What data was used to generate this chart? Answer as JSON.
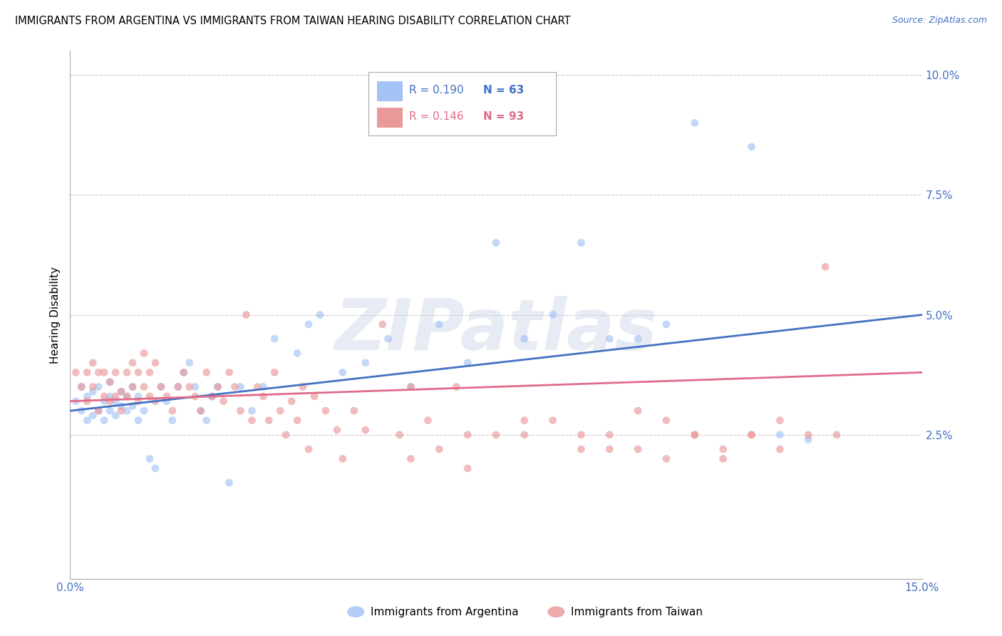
{
  "title": "IMMIGRANTS FROM ARGENTINA VS IMMIGRANTS FROM TAIWAN HEARING DISABILITY CORRELATION CHART",
  "source": "Source: ZipAtlas.com",
  "ylabel": "Hearing Disability",
  "legend_label_1": "Immigrants from Argentina",
  "legend_label_2": "Immigrants from Taiwan",
  "R1": "0.190",
  "N1": "63",
  "R2": "0.146",
  "N2": "93",
  "color1": "#a4c2f4",
  "color2": "#ea9999",
  "trendline1_color": "#4472c4",
  "trendline2_color": "#e06c8a",
  "xlim": [
    0.0,
    0.15
  ],
  "ylim": [
    -0.005,
    0.105
  ],
  "yticks_right": [
    0.025,
    0.05,
    0.075,
    0.1
  ],
  "ytick_labels_right": [
    "2.5%",
    "5.0%",
    "7.5%",
    "10.0%"
  ],
  "watermark": "ZIPatlas",
  "background_color": "#ffffff",
  "grid_color": "#cccccc",
  "scatter_alpha": 0.65,
  "scatter_size": 60,
  "argentina_x": [
    0.001,
    0.002,
    0.002,
    0.003,
    0.003,
    0.004,
    0.004,
    0.005,
    0.005,
    0.006,
    0.006,
    0.007,
    0.007,
    0.007,
    0.008,
    0.008,
    0.009,
    0.009,
    0.01,
    0.01,
    0.011,
    0.011,
    0.012,
    0.012,
    0.013,
    0.014,
    0.015,
    0.016,
    0.017,
    0.018,
    0.019,
    0.02,
    0.021,
    0.022,
    0.023,
    0.024,
    0.025,
    0.026,
    0.028,
    0.03,
    0.032,
    0.034,
    0.036,
    0.04,
    0.042,
    0.044,
    0.048,
    0.052,
    0.056,
    0.06,
    0.065,
    0.07,
    0.075,
    0.08,
    0.085,
    0.09,
    0.095,
    0.1,
    0.105,
    0.11,
    0.12,
    0.125,
    0.13
  ],
  "argentina_y": [
    0.032,
    0.03,
    0.035,
    0.028,
    0.033,
    0.029,
    0.034,
    0.03,
    0.035,
    0.028,
    0.032,
    0.03,
    0.033,
    0.036,
    0.029,
    0.032,
    0.031,
    0.034,
    0.03,
    0.033,
    0.031,
    0.035,
    0.028,
    0.033,
    0.03,
    0.02,
    0.018,
    0.035,
    0.032,
    0.028,
    0.035,
    0.038,
    0.04,
    0.035,
    0.03,
    0.028,
    0.033,
    0.035,
    0.015,
    0.035,
    0.03,
    0.035,
    0.045,
    0.042,
    0.048,
    0.05,
    0.038,
    0.04,
    0.045,
    0.035,
    0.048,
    0.04,
    0.065,
    0.045,
    0.05,
    0.065,
    0.045,
    0.045,
    0.048,
    0.09,
    0.085,
    0.025,
    0.024
  ],
  "taiwan_x": [
    0.001,
    0.002,
    0.003,
    0.003,
    0.004,
    0.004,
    0.005,
    0.005,
    0.006,
    0.006,
    0.007,
    0.007,
    0.008,
    0.008,
    0.009,
    0.009,
    0.01,
    0.01,
    0.011,
    0.011,
    0.012,
    0.012,
    0.013,
    0.013,
    0.014,
    0.014,
    0.015,
    0.015,
    0.016,
    0.017,
    0.018,
    0.019,
    0.02,
    0.021,
    0.022,
    0.023,
    0.024,
    0.025,
    0.026,
    0.027,
    0.028,
    0.029,
    0.03,
    0.031,
    0.032,
    0.033,
    0.034,
    0.035,
    0.036,
    0.037,
    0.038,
    0.039,
    0.04,
    0.041,
    0.042,
    0.043,
    0.045,
    0.047,
    0.048,
    0.05,
    0.052,
    0.055,
    0.058,
    0.06,
    0.063,
    0.065,
    0.068,
    0.07,
    0.075,
    0.08,
    0.085,
    0.09,
    0.095,
    0.1,
    0.105,
    0.11,
    0.115,
    0.12,
    0.125,
    0.06,
    0.07,
    0.08,
    0.09,
    0.095,
    0.1,
    0.105,
    0.11,
    0.115,
    0.12,
    0.125,
    0.13,
    0.133,
    0.135
  ],
  "taiwan_y": [
    0.038,
    0.035,
    0.032,
    0.038,
    0.035,
    0.04,
    0.03,
    0.038,
    0.033,
    0.038,
    0.032,
    0.036,
    0.033,
    0.038,
    0.03,
    0.034,
    0.033,
    0.038,
    0.035,
    0.04,
    0.032,
    0.038,
    0.042,
    0.035,
    0.033,
    0.038,
    0.032,
    0.04,
    0.035,
    0.033,
    0.03,
    0.035,
    0.038,
    0.035,
    0.033,
    0.03,
    0.038,
    0.033,
    0.035,
    0.032,
    0.038,
    0.035,
    0.03,
    0.05,
    0.028,
    0.035,
    0.033,
    0.028,
    0.038,
    0.03,
    0.025,
    0.032,
    0.028,
    0.035,
    0.022,
    0.033,
    0.03,
    0.026,
    0.02,
    0.03,
    0.026,
    0.048,
    0.025,
    0.035,
    0.028,
    0.022,
    0.035,
    0.025,
    0.025,
    0.025,
    0.028,
    0.025,
    0.022,
    0.03,
    0.028,
    0.025,
    0.022,
    0.025,
    0.028,
    0.02,
    0.018,
    0.028,
    0.022,
    0.025,
    0.022,
    0.02,
    0.025,
    0.02,
    0.025,
    0.022,
    0.025,
    0.06,
    0.025
  ],
  "trendline1_x0": 0.0,
  "trendline1_y0": 0.03,
  "trendline1_x1": 0.15,
  "trendline1_y1": 0.05,
  "trendline2_x0": 0.0,
  "trendline2_y0": 0.032,
  "trendline2_x1": 0.15,
  "trendline2_y1": 0.038
}
